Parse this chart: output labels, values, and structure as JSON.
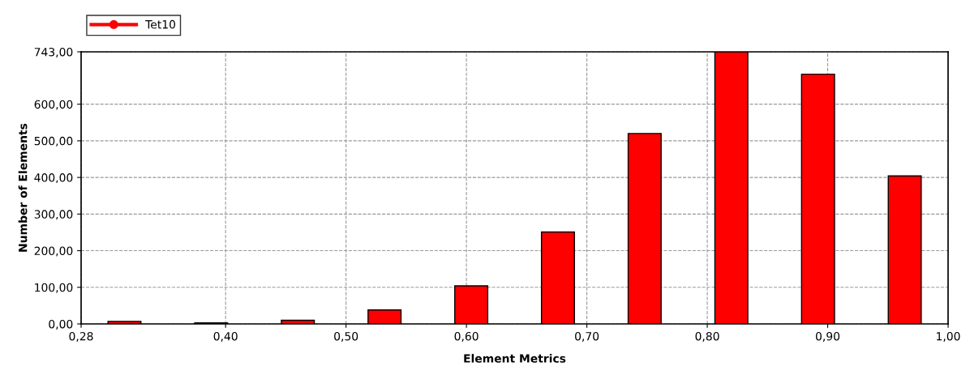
{
  "chart_data": {
    "type": "histogram",
    "xlabel": "Element Metrics",
    "ylabel": "Number of Elements",
    "bins": [
      0.28,
      0.352,
      0.424,
      0.496,
      0.568,
      0.64,
      0.712,
      0.784,
      0.856,
      0.928,
      1.0
    ],
    "series": [
      {
        "name": "Tet10",
        "color": "#ff0000",
        "values": [
          7,
          3,
          10,
          38,
          104,
          251,
          520,
          743,
          682,
          404
        ]
      }
    ],
    "xlim": [
      0.28,
      1.0
    ],
    "xticks": [
      {
        "value": 0.28,
        "label": "0,28"
      },
      {
        "value": 0.4,
        "label": "0,40"
      },
      {
        "value": 0.5,
        "label": "0,50"
      },
      {
        "value": 0.6,
        "label": "0,60"
      },
      {
        "value": 0.7,
        "label": "0,70"
      },
      {
        "value": 0.8,
        "label": "0,80"
      },
      {
        "value": 0.9,
        "label": "0,90"
      },
      {
        "value": 1.0,
        "label": "1,00"
      }
    ],
    "ylim": [
      0,
      743
    ],
    "yticks": [
      {
        "value": 0,
        "label": "0,00"
      },
      {
        "value": 100,
        "label": "100,00"
      },
      {
        "value": 200,
        "label": "200,00"
      },
      {
        "value": 300,
        "label": "300,00"
      },
      {
        "value": 400,
        "label": "400,00"
      },
      {
        "value": 500,
        "label": "500,00"
      },
      {
        "value": 600,
        "label": "600,00"
      },
      {
        "value": 743,
        "label": "743,00"
      }
    ],
    "grid": true,
    "legend": "top left",
    "marker": "circle"
  }
}
